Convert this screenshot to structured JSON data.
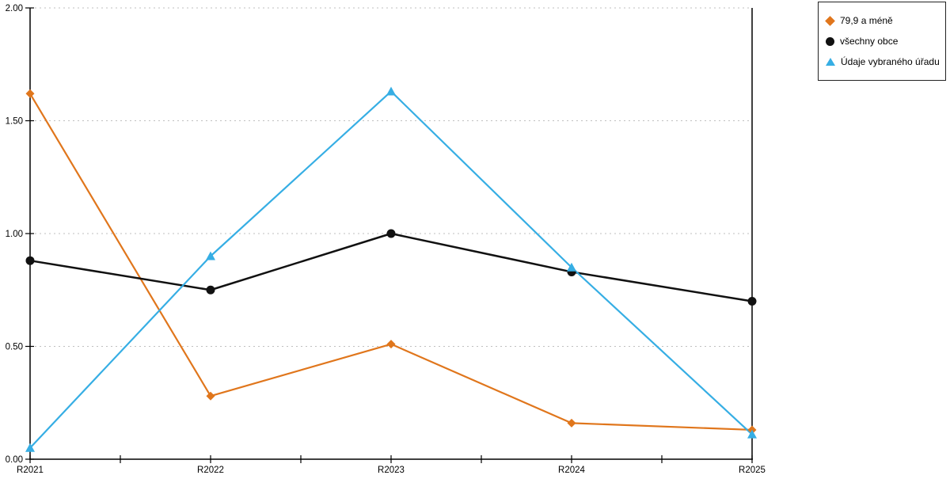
{
  "chart_data": {
    "type": "line",
    "categories": [
      "R2021",
      "R2022",
      "R2023",
      "R2024",
      "R2025"
    ],
    "series": [
      {
        "name": "79,9 a méně",
        "marker": "diamond",
        "color": "#E0761C",
        "values": [
          1.62,
          0.28,
          0.51,
          0.16,
          0.13
        ]
      },
      {
        "name": "všechny obce",
        "marker": "circle",
        "color": "#111111",
        "values": [
          0.88,
          0.75,
          1.0,
          0.83,
          0.7
        ]
      },
      {
        "name": "Údaje vybraného úřadu",
        "marker": "triangle",
        "color": "#36AEE4",
        "values": [
          0.05,
          0.9,
          1.63,
          0.85,
          0.11
        ]
      }
    ],
    "title": "",
    "xlabel": "",
    "ylabel": "",
    "ylim": [
      0,
      2
    ],
    "ytick_labels": [
      "0.00",
      "0.50",
      "1.00",
      "1.50",
      "2.00"
    ],
    "ytick_values": [
      0,
      0.5,
      1.0,
      1.5,
      2.0
    ],
    "grid": "horizontal-dotted",
    "gridline_color": "#bfbfbf",
    "axis_color": "#000000",
    "legend_position": "outside-top-right"
  },
  "legend": {
    "items": [
      {
        "label": "79,9 a méně",
        "marker": "diamond",
        "color": "#E0761C"
      },
      {
        "label": "všechny obce",
        "marker": "circle",
        "color": "#111111"
      },
      {
        "label": "Údaje vybraného úřadu",
        "marker": "triangle",
        "color": "#36AEE4"
      }
    ]
  }
}
